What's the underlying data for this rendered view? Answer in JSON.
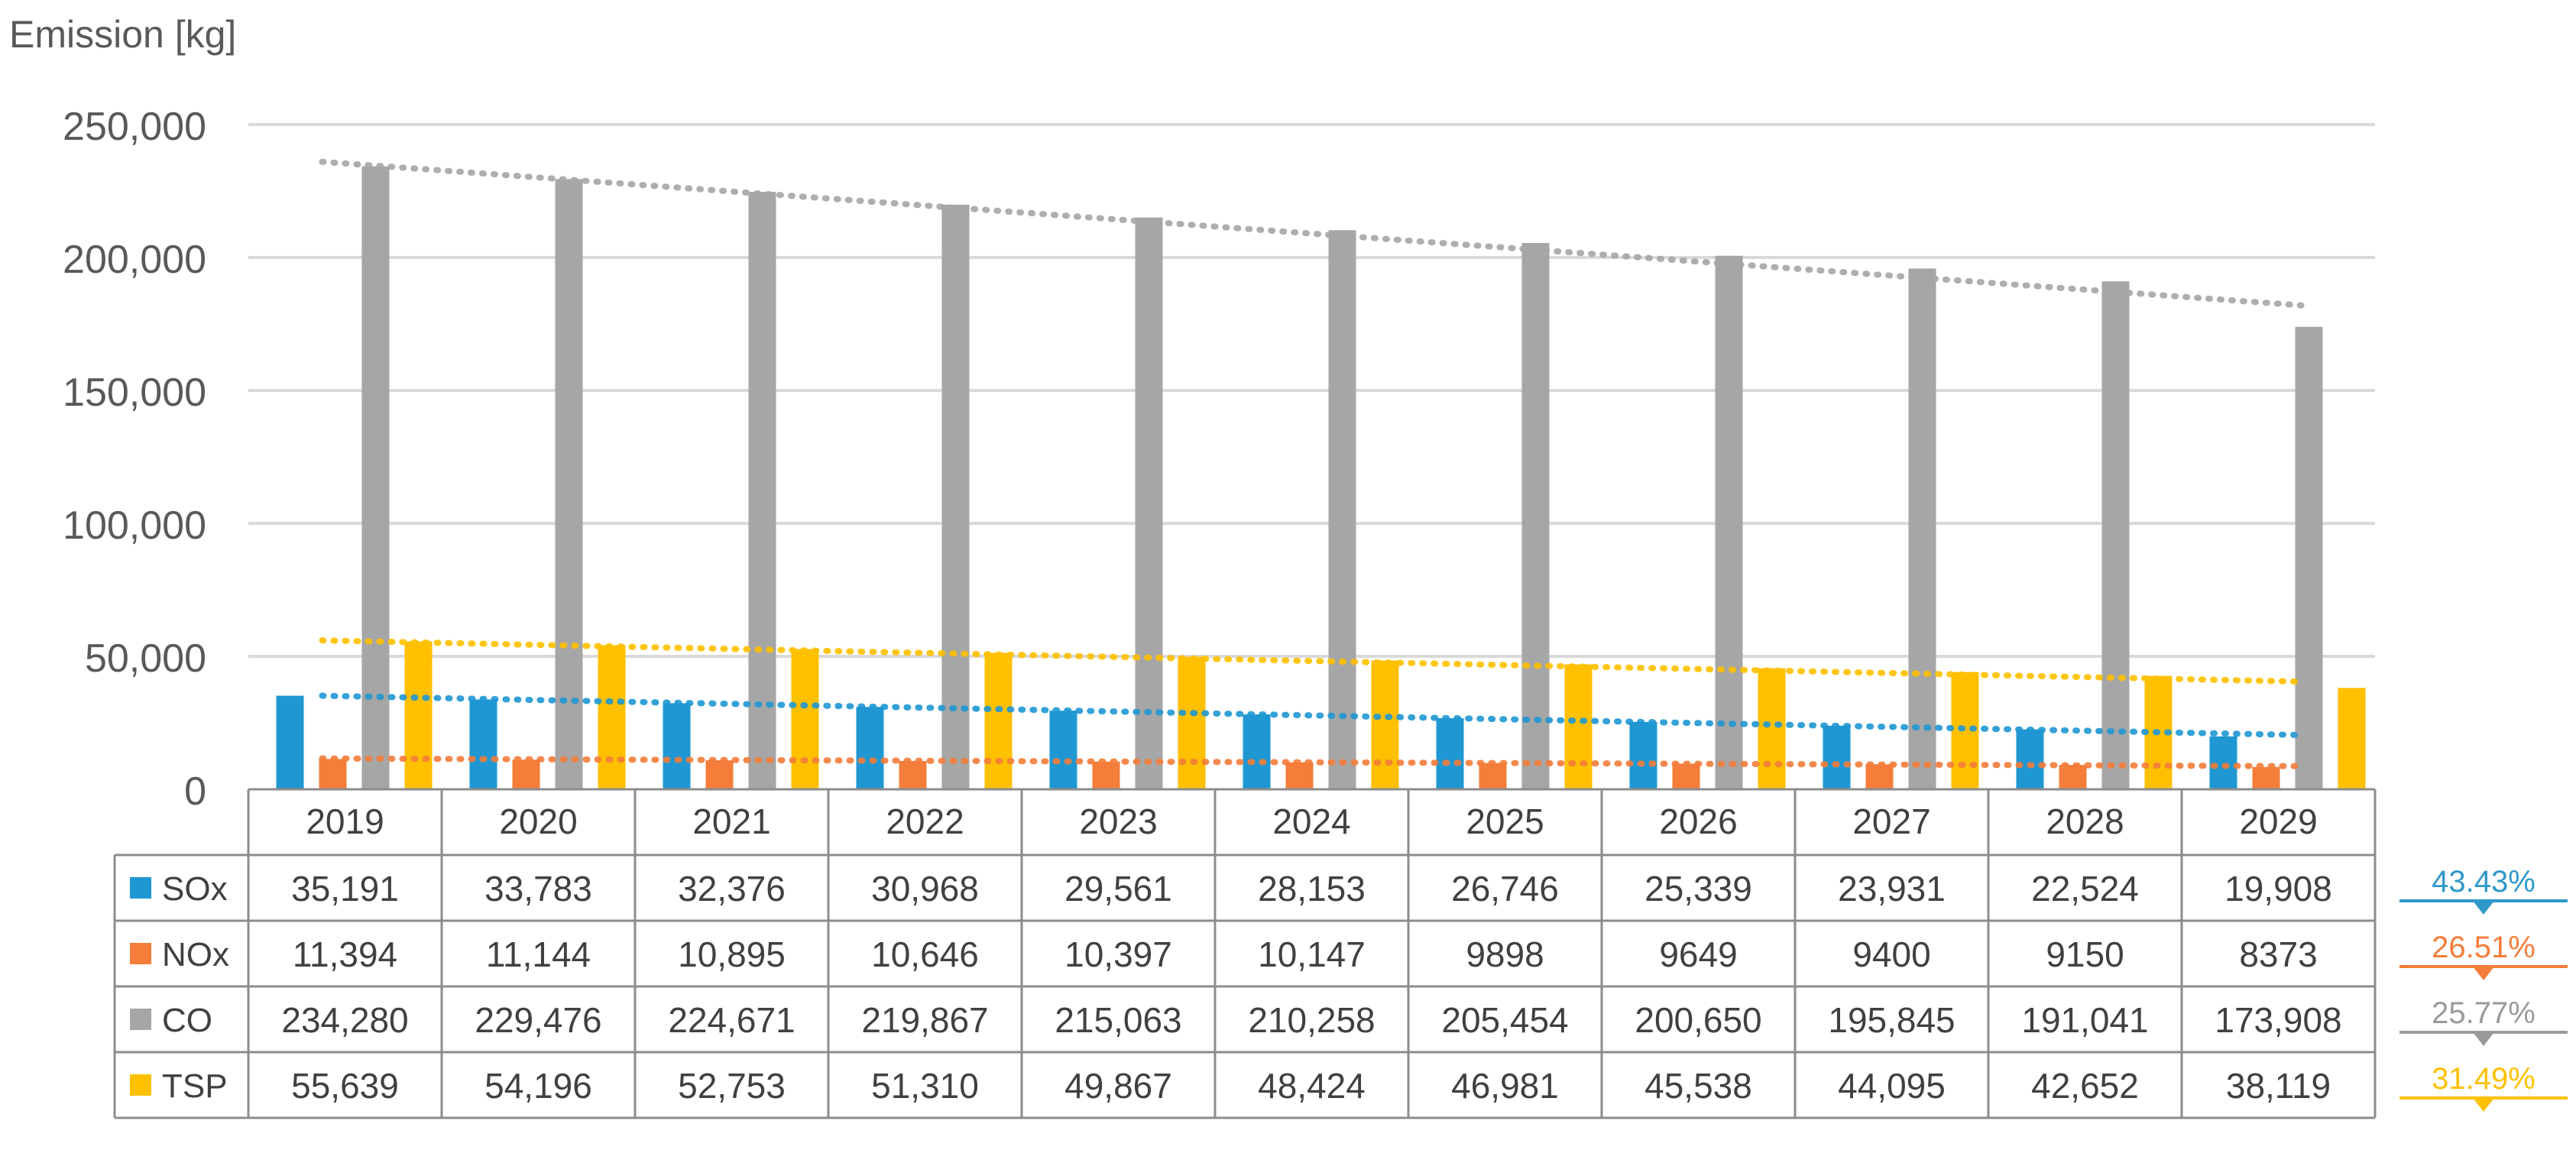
{
  "chart_data": {
    "type": "bar",
    "ylabel": "Emission [kg]",
    "ylim": [
      0,
      250000
    ],
    "yticks": [
      0,
      50000,
      100000,
      150000,
      200000,
      250000
    ],
    "ytick_labels": [
      "0",
      "50,000",
      "100,000",
      "150,000",
      "200,000",
      "250,000"
    ],
    "grid": true,
    "categories": [
      "2019",
      "2020",
      "2021",
      "2022",
      "2023",
      "2024",
      "2025",
      "2026",
      "2027",
      "2028",
      "2029"
    ],
    "series": [
      {
        "name": "SOx",
        "color": "#1f97d3",
        "values": [
          35191,
          33783,
          32376,
          30968,
          29561,
          28153,
          26746,
          25339,
          23931,
          22524,
          19908
        ],
        "labels": [
          "35,191",
          "33,783",
          "32,376",
          "30,968",
          "29,561",
          "28,153",
          "26,746",
          "25,339",
          "23,931",
          "22,524",
          "19,908"
        ],
        "reduction": "43.43%",
        "trendline": {
          "start": 35191,
          "end": 20400
        }
      },
      {
        "name": "NOx",
        "color": "#f47d3a",
        "values": [
          11394,
          11144,
          10895,
          10646,
          10397,
          10147,
          9898,
          9649,
          9400,
          9150,
          8373
        ],
        "labels": [
          "11,394",
          "11,144",
          "10,895",
          "10,646",
          "10,397",
          "10,147",
          "9898",
          "9649",
          "9400",
          "9150",
          "8373"
        ],
        "reduction": "26.51%",
        "trendline": {
          "start": 11600,
          "end": 8700
        }
      },
      {
        "name": "CO",
        "color": "#a6a6a6",
        "values": [
          234280,
          229476,
          224671,
          219867,
          215063,
          210258,
          205454,
          200650,
          195845,
          191041,
          173908
        ],
        "labels": [
          "234,280",
          "229,476",
          "224,671",
          "219,867",
          "215,063",
          "210,258",
          "205,454",
          "200,650",
          "195,845",
          "191,041",
          "173,908"
        ],
        "reduction": "25.77%",
        "trendline": {
          "start": 236000,
          "end": 182000
        }
      },
      {
        "name": "TSP",
        "color": "#ffc000",
        "values": [
          55639,
          54196,
          52753,
          51310,
          49867,
          48424,
          46981,
          45538,
          44095,
          42652,
          38119
        ],
        "labels": [
          "55,639",
          "54,196",
          "52,753",
          "51,310",
          "49,867",
          "48,424",
          "46,981",
          "45,538",
          "44,095",
          "42,652",
          "38,119"
        ],
        "reduction": "31.49%",
        "trendline": {
          "start": 56000,
          "end": 40500
        }
      }
    ]
  },
  "reduction_colors": {
    "SOx": "#2e98c9",
    "NOx": "#f47d3a",
    "CO": "#9a9a9a",
    "TSP": "#ffc000"
  }
}
